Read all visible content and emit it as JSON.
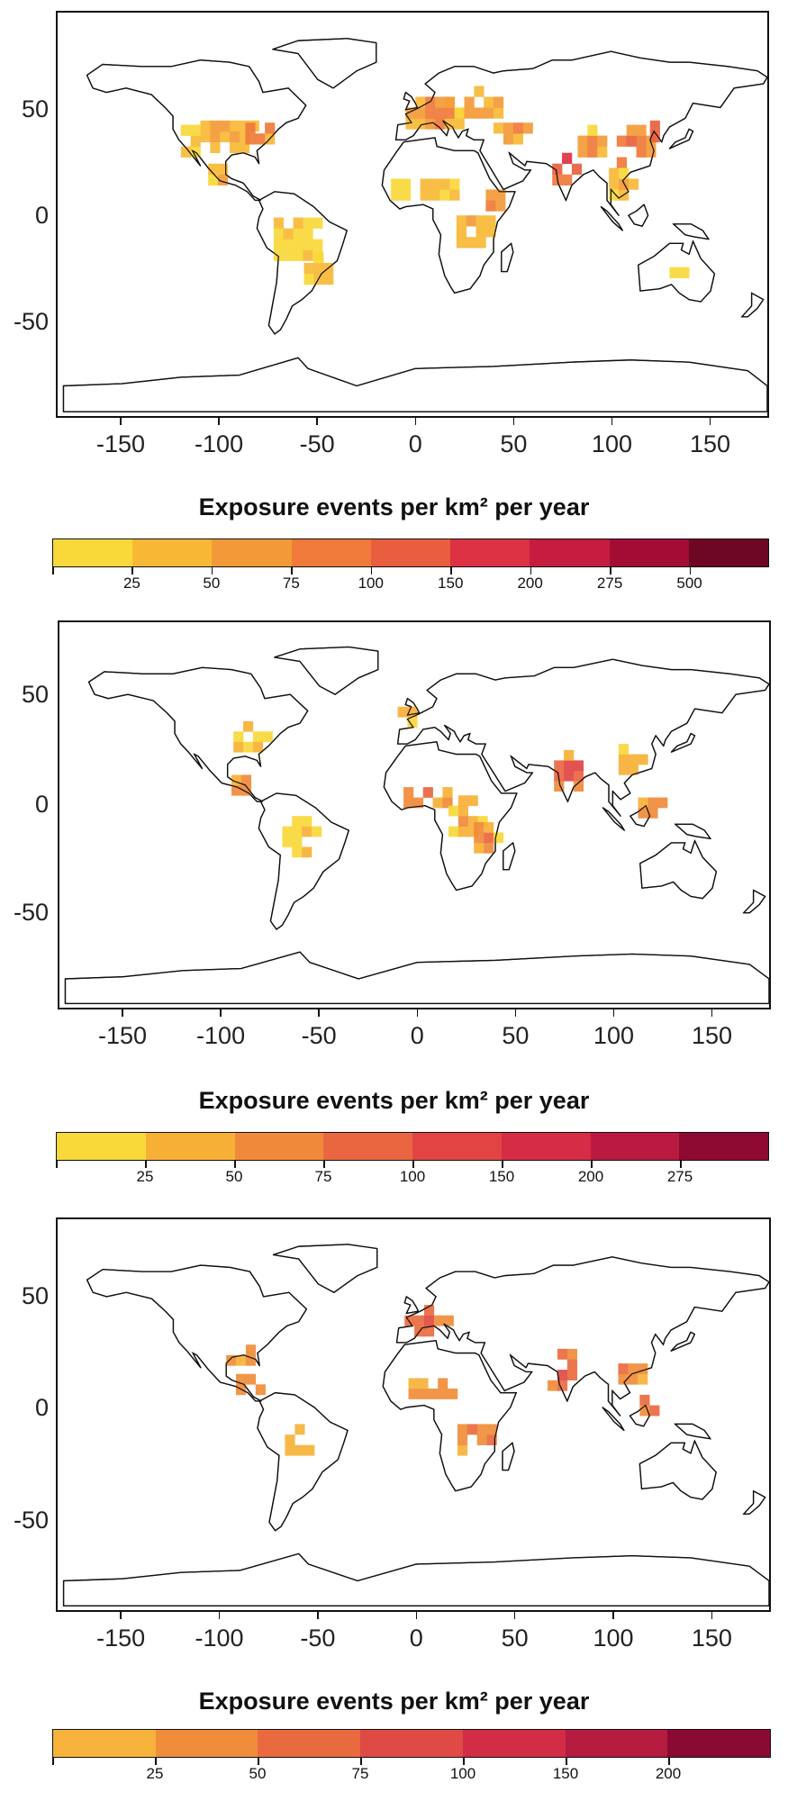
{
  "maps": [
    {
      "id": "map1",
      "y_ticks": [
        "50",
        "0",
        "-50"
      ],
      "x_ticks": [
        "-150",
        "-100",
        "-50",
        "0",
        "50",
        "100",
        "150"
      ],
      "legend_title": "Exposure events per km² per year",
      "colorbar": {
        "colors": [
          "#f9d83a",
          "#f7b836",
          "#f39a38",
          "#ef7a3a",
          "#e95e3e",
          "#dd3144",
          "#c61c40",
          "#a30d35",
          "#6e0723"
        ],
        "tick_labels": [
          "25",
          "50",
          "75",
          "100",
          "150",
          "200",
          "275",
          "500"
        ]
      },
      "hotspots": [
        {
          "lon": -95,
          "lat": 38,
          "w": 30,
          "h": 16,
          "level": 2
        },
        {
          "lon": -80,
          "lat": 40,
          "w": 14,
          "h": 12,
          "level": 5
        },
        {
          "lon": -115,
          "lat": 35,
          "w": 10,
          "h": 14,
          "level": 1
        },
        {
          "lon": -100,
          "lat": 20,
          "w": 12,
          "h": 10,
          "level": 2
        },
        {
          "lon": -60,
          "lat": -10,
          "w": 25,
          "h": 20,
          "level": 0
        },
        {
          "lon": -50,
          "lat": -25,
          "w": 14,
          "h": 12,
          "level": 1
        },
        {
          "lon": 10,
          "lat": 48,
          "w": 30,
          "h": 14,
          "level": 4
        },
        {
          "lon": 30,
          "lat": 52,
          "w": 30,
          "h": 12,
          "level": 2
        },
        {
          "lon": 50,
          "lat": 40,
          "w": 20,
          "h": 12,
          "level": 3
        },
        {
          "lon": 5,
          "lat": 13,
          "w": 35,
          "h": 10,
          "level": 1
        },
        {
          "lon": 30,
          "lat": -5,
          "w": 18,
          "h": 18,
          "level": 2
        },
        {
          "lon": 40,
          "lat": 8,
          "w": 8,
          "h": 10,
          "level": 5
        },
        {
          "lon": 78,
          "lat": 24,
          "w": 16,
          "h": 18,
          "level": 6
        },
        {
          "lon": 90,
          "lat": 34,
          "w": 14,
          "h": 12,
          "level": 3
        },
        {
          "lon": 112,
          "lat": 32,
          "w": 18,
          "h": 18,
          "level": 5
        },
        {
          "lon": 120,
          "lat": 40,
          "w": 10,
          "h": 10,
          "level": 7
        },
        {
          "lon": 105,
          "lat": 15,
          "w": 12,
          "h": 14,
          "level": 2
        },
        {
          "lon": 135,
          "lat": -25,
          "w": 10,
          "h": 6,
          "level": 0
        }
      ]
    },
    {
      "id": "map2",
      "y_ticks": [
        "50",
        "0",
        "-50"
      ],
      "x_ticks": [
        "-150",
        "-100",
        "-50",
        "0",
        "50",
        "100",
        "150"
      ],
      "legend_title": "Exposure events per km² per year",
      "colorbar": {
        "colors": [
          "#f9d83a",
          "#f7b036",
          "#f08a3a",
          "#ea6640",
          "#e24444",
          "#d62c46",
          "#bb1a40",
          "#8f0a33"
        ],
        "tick_labels": [
          "25",
          "50",
          "75",
          "100",
          "150",
          "200",
          "275"
        ]
      },
      "hotspots": [
        {
          "lon": -85,
          "lat": 38,
          "w": 18,
          "h": 12,
          "level": 1
        },
        {
          "lon": -90,
          "lat": 15,
          "w": 10,
          "h": 8,
          "level": 3
        },
        {
          "lon": -60,
          "lat": -10,
          "w": 18,
          "h": 18,
          "level": 0
        },
        {
          "lon": 5,
          "lat": 10,
          "w": 24,
          "h": 10,
          "level": 3
        },
        {
          "lon": 25,
          "lat": 0,
          "w": 18,
          "h": 18,
          "level": 2
        },
        {
          "lon": 35,
          "lat": -10,
          "w": 12,
          "h": 14,
          "level": 3
        },
        {
          "lon": 78,
          "lat": 22,
          "w": 16,
          "h": 18,
          "level": 5
        },
        {
          "lon": 110,
          "lat": 28,
          "w": 14,
          "h": 14,
          "level": 2
        },
        {
          "lon": 120,
          "lat": 5,
          "w": 14,
          "h": 10,
          "level": 4
        },
        {
          "lon": -5,
          "lat": 48,
          "w": 10,
          "h": 8,
          "level": 0
        }
      ]
    },
    {
      "id": "map3",
      "y_ticks": [
        "50",
        "0",
        "-50"
      ],
      "x_ticks": [
        "-150",
        "-100",
        "-50",
        "0",
        "50",
        "100",
        "150"
      ],
      "legend_title": "Exposure events per km² per year",
      "colorbar": {
        "colors": [
          "#f6b23a",
          "#f08d3a",
          "#ea6a3f",
          "#e04a44",
          "#d22c46",
          "#b61b40",
          "#8a0a33"
        ],
        "tick_labels": [
          "25",
          "50",
          "75",
          "100",
          "150",
          "200"
        ]
      },
      "hotspots": [
        {
          "lon": -90,
          "lat": 30,
          "w": 14,
          "h": 10,
          "level": 1
        },
        {
          "lon": -85,
          "lat": 15,
          "w": 14,
          "h": 8,
          "level": 2
        },
        {
          "lon": -60,
          "lat": -12,
          "w": 14,
          "h": 12,
          "level": 0
        },
        {
          "lon": 5,
          "lat": 45,
          "w": 22,
          "h": 12,
          "level": 3
        },
        {
          "lon": 5,
          "lat": 13,
          "w": 28,
          "h": 8,
          "level": 1
        },
        {
          "lon": 30,
          "lat": -10,
          "w": 18,
          "h": 16,
          "level": 2
        },
        {
          "lon": 75,
          "lat": 22,
          "w": 16,
          "h": 18,
          "level": 3
        },
        {
          "lon": 110,
          "lat": 22,
          "w": 14,
          "h": 12,
          "level": 2
        },
        {
          "lon": 120,
          "lat": 5,
          "w": 12,
          "h": 8,
          "level": 3
        }
      ]
    }
  ]
}
